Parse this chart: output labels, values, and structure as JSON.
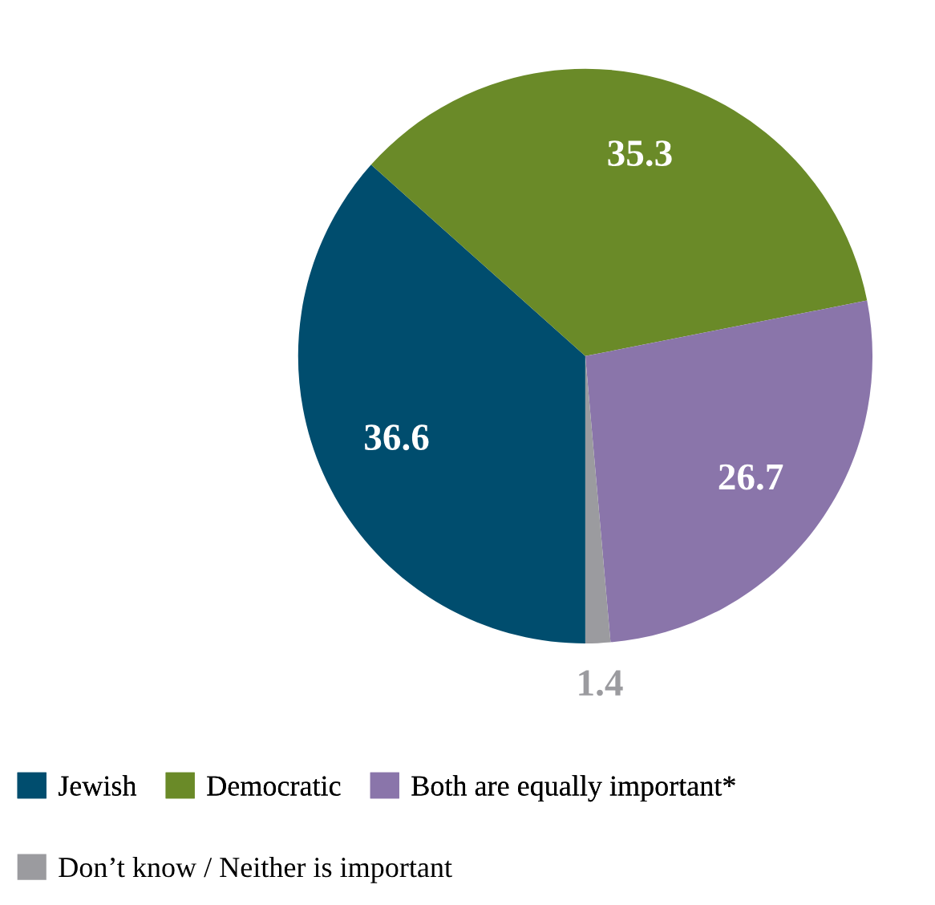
{
  "chart_data": {
    "type": "pie",
    "categories": [
      "Jewish",
      "Democratic",
      "Both are equally important*",
      "Don’t know / Neither is important"
    ],
    "values": [
      36.6,
      35.3,
      26.7,
      1.4
    ],
    "colors": [
      "#004d6e",
      "#6a8a28",
      "#8a75aa",
      "#9b9b9f"
    ],
    "data_labels": true,
    "legend": "bottom"
  }
}
